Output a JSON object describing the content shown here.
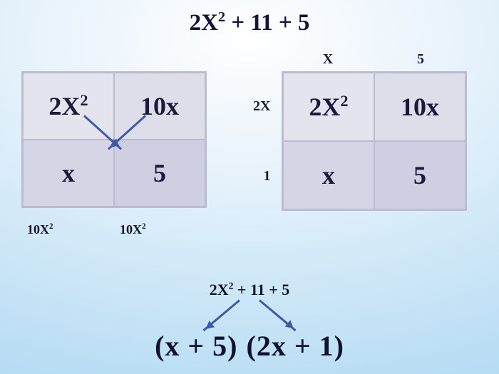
{
  "colors": {
    "text": "#1a1a3a",
    "arrow": "#3d5aa9",
    "grid_border": "#bcbcd0",
    "cell_tl": "#e4e4ee",
    "cell_tr": "#dedeea",
    "cell_bl": "#d5d5e6",
    "cell_br": "#cfcfe2",
    "bg_center": "#ffffff",
    "bg_edge": "#b5dbf3"
  },
  "typography": {
    "title_fontsize": 33,
    "cell_fontsize": 36,
    "label_fontsize": 20,
    "below_fontsize": 18,
    "mid_fontsize": 22,
    "factor_fontsize": 40,
    "weight": "bold",
    "family": "Cambria Math / serif"
  },
  "title": {
    "base1": "2X",
    "sup1": "2",
    "rest": " + 11 + 5"
  },
  "left_box": {
    "cells": {
      "tl_base": "2X",
      "tl_sup": "2",
      "tr": "10x",
      "bl": "x",
      "br": "5"
    },
    "below": {
      "l_base": "10X",
      "l_sup": "2",
      "r_base": "10X",
      "r_sup": "2"
    }
  },
  "right_box": {
    "top_labels": {
      "l": "X",
      "r": "5"
    },
    "side_labels": {
      "t": "2X",
      "b": "1"
    },
    "cells": {
      "tl_base": "2X",
      "tl_sup": "2",
      "tr": "10x",
      "bl": "x",
      "br": "5"
    }
  },
  "bottom": {
    "expr_base1": "2X",
    "expr_sup1": "2",
    "expr_rest": " + 11 + 5",
    "factor_left": "(x + 5)",
    "factor_right": "(2x + 1)"
  }
}
